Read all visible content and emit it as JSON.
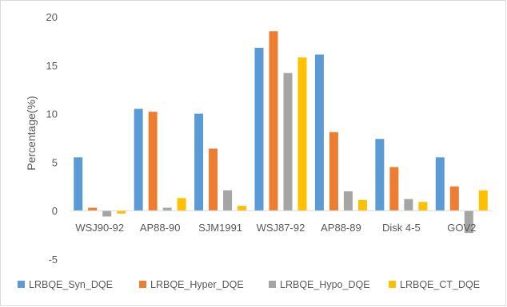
{
  "chart_data": {
    "type": "bar",
    "title": "",
    "xlabel": "",
    "ylabel": "Percentage(%)",
    "ylim": [
      -5,
      20
    ],
    "yticks": [
      -5,
      0,
      5,
      10,
      15,
      20
    ],
    "grid": false,
    "legend_position": "bottom",
    "categories": [
      "WSJ90-92",
      "AP88-90",
      "SJM1991",
      "WSJ87-92",
      "AP88-89",
      "Disk 4-5",
      "GOV2"
    ],
    "series": [
      {
        "name": "LRBQE_Syn_DQE",
        "color": "#5B9BD5",
        "values": [
          5.5,
          10.5,
          10.0,
          16.8,
          16.1,
          7.4,
          5.5
        ]
      },
      {
        "name": "LRBQE_Hyper_DQE",
        "color": "#ED7D31",
        "values": [
          0.3,
          10.2,
          6.4,
          18.5,
          8.1,
          4.5,
          2.5
        ]
      },
      {
        "name": "LRBQE_Hypo_DQE",
        "color": "#A5A5A5",
        "values": [
          -0.6,
          0.3,
          2.1,
          14.2,
          2.0,
          1.2,
          -2.3
        ]
      },
      {
        "name": "LRBQE_CT_DQE",
        "color": "#FFC000",
        "values": [
          -0.3,
          1.3,
          0.5,
          15.8,
          1.1,
          0.9,
          2.1
        ]
      }
    ]
  }
}
